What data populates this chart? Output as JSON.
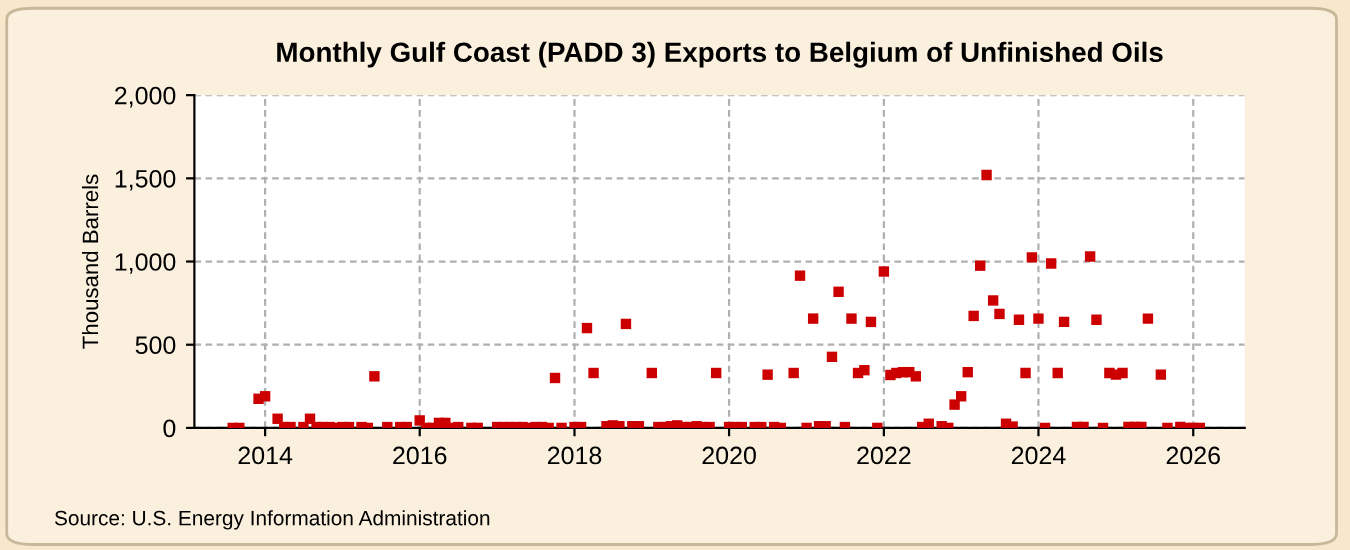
{
  "chart_data": {
    "type": "scatter",
    "title": "Monthly Gulf Coast (PADD 3) Exports to Belgium of Unfinished Oils",
    "ylabel": "Thousand Barrels",
    "annotations": [
      "Source: U.S. Energy Information Administration"
    ],
    "marker": "square",
    "grid": true,
    "legend": false,
    "xlim": [
      "2013-02",
      "2026-09"
    ],
    "ylim": [
      0,
      2000
    ],
    "xticks": [
      {
        "value": "2014-01",
        "label": "2014"
      },
      {
        "value": "2016-01",
        "label": "2016"
      },
      {
        "value": "2018-01",
        "label": "2018"
      },
      {
        "value": "2020-01",
        "label": "2020"
      },
      {
        "value": "2022-01",
        "label": "2022"
      },
      {
        "value": "2024-01",
        "label": "2024"
      },
      {
        "value": "2026-01",
        "label": "2026"
      }
    ],
    "yticks": [
      {
        "value": 0,
        "label": "0"
      },
      {
        "value": 500,
        "label": "500"
      },
      {
        "value": 1000,
        "label": "1,000"
      },
      {
        "value": 1500,
        "label": "1,500"
      },
      {
        "value": 2000,
        "label": "2,000"
      }
    ],
    "series": [
      {
        "color": "#cc0000",
        "x": [
          "2013-08",
          "2013-09",
          "2013-12",
          "2014-01",
          "2014-03",
          "2014-04",
          "2014-05",
          "2014-07",
          "2014-08",
          "2014-09",
          "2014-10",
          "2014-11",
          "2014-12",
          "2015-01",
          "2015-02",
          "2015-04",
          "2015-05",
          "2015-06",
          "2015-08",
          "2015-10",
          "2015-11",
          "2016-01",
          "2016-02",
          "2016-03",
          "2016-04",
          "2016-05",
          "2016-06",
          "2016-07",
          "2016-09",
          "2016-10",
          "2017-01",
          "2017-02",
          "2017-03",
          "2017-04",
          "2017-05",
          "2017-06",
          "2017-07",
          "2017-08",
          "2017-09",
          "2017-10",
          "2017-11",
          "2018-01",
          "2018-02",
          "2018-03",
          "2018-04",
          "2018-06",
          "2018-07",
          "2018-08",
          "2018-09",
          "2018-10",
          "2018-11",
          "2019-01",
          "2019-02",
          "2019-03",
          "2019-04",
          "2019-05",
          "2019-06",
          "2019-07",
          "2019-08",
          "2019-09",
          "2019-10",
          "2019-11",
          "2020-01",
          "2020-02",
          "2020-03",
          "2020-05",
          "2020-06",
          "2020-07",
          "2020-08",
          "2020-09",
          "2020-11",
          "2020-12",
          "2021-01",
          "2021-02",
          "2021-03",
          "2021-04",
          "2021-05",
          "2021-06",
          "2021-07",
          "2021-08",
          "2021-09",
          "2021-10",
          "2021-11",
          "2021-12",
          "2022-01",
          "2022-02",
          "2022-03",
          "2022-04",
          "2022-05",
          "2022-06",
          "2022-07",
          "2022-08",
          "2022-10",
          "2022-11",
          "2022-12",
          "2023-01",
          "2023-02",
          "2023-03",
          "2023-04",
          "2023-05",
          "2023-06",
          "2023-07",
          "2023-08",
          "2023-09",
          "2023-10",
          "2023-11",
          "2023-12",
          "2024-01",
          "2024-02",
          "2024-03",
          "2024-04",
          "2024-05",
          "2024-07",
          "2024-08",
          "2024-09",
          "2024-10",
          "2024-11",
          "2024-12",
          "2025-01",
          "2025-02",
          "2025-03",
          "2025-04",
          "2025-05",
          "2025-06",
          "2025-08",
          "2025-09",
          "2025-11",
          "2025-12",
          "2026-01",
          "2026-02"
        ],
        "values": [
          0,
          0,
          175,
          190,
          55,
          5,
          5,
          5,
          55,
          5,
          5,
          5,
          0,
          5,
          5,
          5,
          0,
          310,
          5,
          5,
          5,
          45,
          0,
          0,
          30,
          30,
          0,
          5,
          0,
          0,
          5,
          5,
          5,
          5,
          5,
          0,
          5,
          5,
          0,
          300,
          0,
          5,
          5,
          600,
          330,
          10,
          15,
          10,
          625,
          10,
          10,
          330,
          5,
          5,
          10,
          15,
          5,
          5,
          10,
          5,
          5,
          330,
          5,
          5,
          5,
          5,
          5,
          320,
          5,
          0,
          330,
          915,
          0,
          657,
          10,
          10,
          427,
          818,
          5,
          657,
          330,
          347,
          637,
          0,
          940,
          318,
          330,
          335,
          335,
          310,
          5,
          25,
          10,
          0,
          140,
          190,
          335,
          673,
          975,
          1520,
          766,
          685,
          25,
          8,
          650,
          330,
          1025,
          657,
          0,
          988,
          330,
          637,
          5,
          5,
          1030,
          650,
          0,
          330,
          320,
          330,
          5,
          5,
          5,
          657,
          320,
          0,
          5,
          0,
          0,
          0
        ]
      }
    ]
  }
}
